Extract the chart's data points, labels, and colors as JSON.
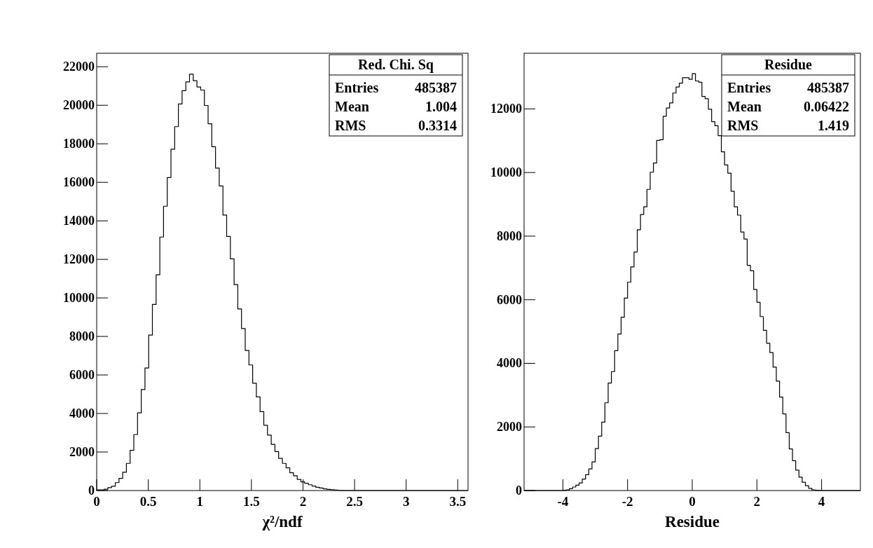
{
  "chart_data": [
    {
      "type": "histogram",
      "title": "Red. Chi. Sq",
      "xlabel": "χ²/ndf",
      "color": "#000000",
      "bins": [
        0,
        0.036,
        0.072,
        0.108,
        0.144,
        0.18,
        0.216,
        0.252,
        0.288,
        0.324,
        0.36,
        0.396,
        0.432,
        0.468,
        0.504,
        0.54,
        0.576,
        0.612,
        0.648,
        0.684,
        0.72,
        0.756,
        0.792,
        0.828,
        0.864,
        0.9,
        0.936,
        0.972,
        1.008,
        1.044,
        1.08,
        1.116,
        1.152,
        1.188,
        1.224,
        1.26,
        1.296,
        1.332,
        1.368,
        1.404,
        1.44,
        1.476,
        1.512,
        1.548,
        1.584,
        1.62,
        1.656,
        1.692,
        1.728,
        1.764,
        1.8,
        1.836,
        1.872,
        1.908,
        1.944,
        1.98,
        2.016,
        2.052,
        2.088,
        2.124,
        2.16,
        2.196,
        2.232,
        2.268,
        2.304,
        2.34,
        2.376,
        2.412,
        2.448,
        2.484,
        2.52,
        2.556,
        2.592,
        2.628,
        2.664,
        2.7,
        2.736,
        2.772,
        2.808,
        2.844,
        2.88,
        2.916,
        2.952,
        2.988,
        3.024,
        3.06,
        3.096,
        3.132,
        3.168,
        3.204,
        3.24,
        3.276,
        3.312,
        3.348,
        3.384,
        3.42,
        3.456,
        3.492,
        3.528,
        3.564,
        3.6
      ],
      "values": [
        30,
        30,
        70,
        150,
        220,
        410,
        630,
        950,
        1410,
        2090,
        2910,
        4030,
        5240,
        6360,
        8070,
        9660,
        11200,
        13160,
        14760,
        16250,
        17720,
        18890,
        20070,
        20760,
        21210,
        21610,
        21280,
        20950,
        20790,
        19990,
        19040,
        17850,
        16740,
        15810,
        14300,
        13190,
        12030,
        10690,
        9430,
        8410,
        7270,
        6520,
        5570,
        4860,
        4100,
        3390,
        2880,
        2400,
        2020,
        1670,
        1410,
        1180,
        920,
        770,
        580,
        450,
        380,
        300,
        230,
        170,
        130,
        90,
        60,
        40,
        20,
        10,
        0,
        0,
        0,
        0,
        0,
        0,
        0,
        0,
        0,
        0,
        0,
        0,
        0,
        0,
        0,
        0,
        0,
        0,
        0,
        0,
        0,
        0,
        0,
        0,
        0,
        0,
        0,
        0,
        0,
        0,
        0,
        0,
        0,
        0
      ],
      "xlim": [
        0,
        3.6
      ],
      "ylim": [
        0,
        22700
      ],
      "xticks": [
        0,
        0.5,
        1,
        1.5,
        2,
        2.5,
        3,
        3.5
      ],
      "yticks": [
        0,
        2000,
        4000,
        6000,
        8000,
        10000,
        12000,
        14000,
        16000,
        18000,
        20000,
        22000
      ],
      "annotations": [
        "Entries 485387",
        "Mean 1.004",
        "RMS 0.3314"
      ]
    },
    {
      "type": "histogram",
      "title": "Residue",
      "xlabel": "Residue",
      "color": "#000000",
      "bins": [
        -5.2,
        -5.1,
        -5,
        -4.9,
        -4.8,
        -4.7,
        -4.6,
        -4.5,
        -4.4,
        -4.3,
        -4.2,
        -4.1,
        -4,
        -3.9,
        -3.8,
        -3.7,
        -3.6,
        -3.5,
        -3.4,
        -3.3,
        -3.2,
        -3.1,
        -3,
        -2.9,
        -2.8,
        -2.7,
        -2.6,
        -2.5,
        -2.4,
        -2.3,
        -2.2,
        -2.1,
        -2,
        -1.9,
        -1.8,
        -1.7,
        -1.6,
        -1.5,
        -1.4,
        -1.3,
        -1.2,
        -1.1,
        -1,
        -0.9,
        -0.8,
        -0.7,
        -0.6,
        -0.5,
        -0.4,
        -0.3,
        -0.2,
        -0.1,
        0,
        0.1,
        0.2,
        0.3,
        0.4,
        0.5,
        0.6,
        0.7,
        0.8,
        0.9,
        1,
        1.1,
        1.2,
        1.3,
        1.4,
        1.5,
        1.6,
        1.7,
        1.8,
        1.9,
        2,
        2.1,
        2.2,
        2.3,
        2.4,
        2.5,
        2.6,
        2.7,
        2.8,
        2.9,
        3,
        3.1,
        3.2,
        3.3,
        3.4,
        3.5,
        3.6,
        3.7,
        3.8,
        3.9,
        4,
        4.1,
        4.2,
        4.3,
        4.4,
        4.5,
        4.6,
        4.7,
        4.8,
        4.9,
        5,
        5.1,
        5.2
      ],
      "values": [
        0,
        0,
        0,
        0,
        0,
        0,
        0,
        0,
        0,
        0,
        0,
        0,
        10,
        20,
        60,
        110,
        170,
        240,
        360,
        500,
        680,
        900,
        1320,
        1710,
        2150,
        2760,
        3380,
        3740,
        4400,
        4920,
        5450,
        6050,
        6550,
        7030,
        7500,
        8200,
        8680,
        8920,
        9470,
        10010,
        10300,
        11010,
        11030,
        11770,
        12030,
        12190,
        12500,
        12690,
        12810,
        12980,
        12980,
        12930,
        13110,
        12880,
        12840,
        12390,
        12320,
        11990,
        11600,
        11470,
        11160,
        10650,
        10240,
        9980,
        9410,
        8920,
        8660,
        8130,
        7910,
        7080,
        6910,
        6320,
        5920,
        5470,
        5040,
        4630,
        4340,
        3880,
        3440,
        2940,
        2410,
        1820,
        1310,
        940,
        640,
        420,
        260,
        150,
        70,
        20,
        10,
        0,
        0,
        0,
        0,
        0,
        0,
        0,
        0,
        0,
        0,
        0,
        0,
        0
      ],
      "xlim": [
        -5.2,
        5.2
      ],
      "ylim": [
        0,
        13750
      ],
      "xticks": [
        -4,
        -2,
        0,
        2,
        4
      ],
      "yticks": [
        0,
        2000,
        4000,
        6000,
        8000,
        10000,
        12000
      ],
      "annotations": [
        "Entries 485387",
        "Mean 0.06422",
        "RMS 1.419"
      ]
    }
  ]
}
